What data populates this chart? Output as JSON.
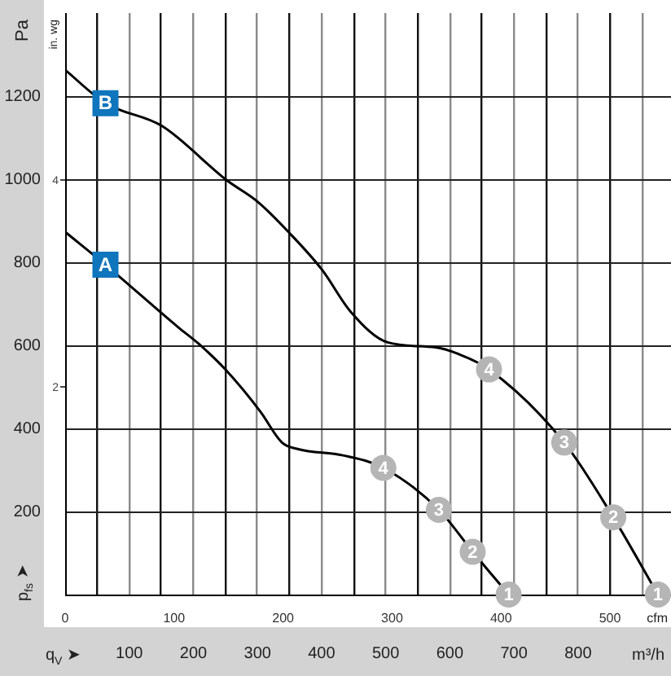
{
  "chart_data": {
    "type": "line",
    "ylabel": "Pa",
    "y2label": "in. wg",
    "xlabel": "cfm",
    "x2label": "m³/h",
    "xlim": [
      0,
      556
    ],
    "xticks": [
      0,
      100,
      200,
      300,
      400,
      500
    ],
    "x2lim": [
      0,
      945
    ],
    "x2ticks": [
      {
        "value": 50,
        "label": null
      },
      100,
      {
        "value": 150,
        "label": null
      },
      200,
      {
        "value": 250,
        "label": null
      },
      300,
      {
        "value": 350,
        "label": null
      },
      400,
      {
        "value": 450,
        "label": null
      },
      500,
      {
        "value": 550,
        "label": null
      },
      600,
      {
        "value": 650,
        "label": null
      },
      700,
      {
        "value": 750,
        "label": null
      },
      800,
      {
        "value": 850,
        "label": null
      },
      {
        "value": 900,
        "label": null
      }
    ],
    "ylim": [
      0,
      1400
    ],
    "yticks": [
      200,
      400,
      600,
      800,
      1000,
      1200
    ],
    "y2lim": [
      0,
      5.62
    ],
    "y2ticks": [
      2,
      4
    ],
    "grid": true,
    "marker": "none",
    "series": [
      {
        "name": "A",
        "color": "#000000",
        "x": [
          0,
          37,
          104,
          122,
          147,
          179,
          199,
          214,
          255,
          292,
          343,
          374,
          407
        ],
        "values": [
          873,
          794,
          643,
          605,
          542,
          441,
          366,
          350,
          335,
          305,
          204,
          103,
          0
        ]
      },
      {
        "name": "B",
        "color": "#000000",
        "x": [
          0,
          37,
          89,
          148,
          177,
          206,
          236,
          262,
          296,
          340,
          360,
          389,
          458,
          503,
          544
        ],
        "values": [
          1263,
          1183,
          1128,
          998,
          945,
          870,
          781,
          681,
          607,
          595,
          580,
          542,
          366,
          186,
          0
        ]
      }
    ],
    "annotations": [
      "p$_{fs}$ ➤",
      "q$_{V}$ ➤",
      {
        "text": "4",
        "x": 292,
        "y": 305
      },
      {
        "text": "3",
        "x": 343,
        "y": 204
      },
      {
        "text": "2",
        "x": 374,
        "y": 103
      },
      {
        "text": "1",
        "x": 407,
        "y": 0
      },
      {
        "text": "4",
        "x": 389,
        "y": 542
      },
      {
        "text": "3",
        "x": 458,
        "y": 366
      },
      {
        "text": "2",
        "x": 503,
        "y": 186
      },
      {
        "text": "1",
        "x": 544,
        "y": 0
      }
    ]
  }
}
